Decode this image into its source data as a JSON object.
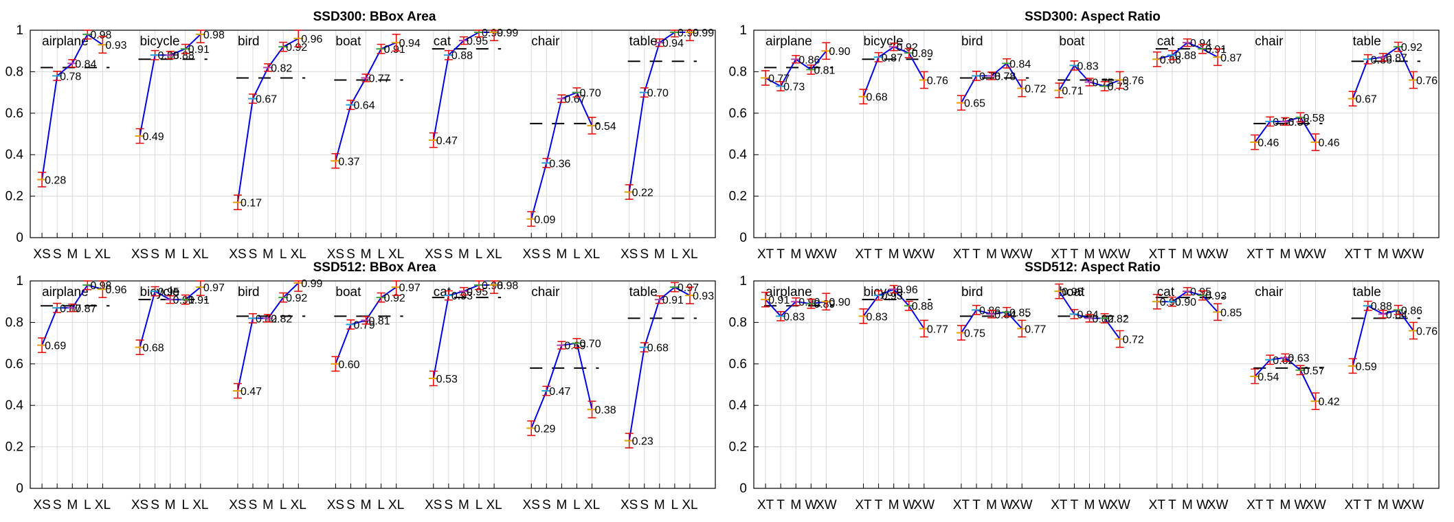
{
  "chart_data": [
    {
      "type": "line",
      "title": "SSD300: BBox Area",
      "xticks": [
        "XS",
        "S",
        "M",
        "L",
        "XL"
      ],
      "ylim": [
        0,
        1
      ],
      "yticks": [
        "0",
        "0.2",
        "0.4",
        "0.6",
        "0.8",
        "1"
      ],
      "grid": true,
      "groups": [
        {
          "name": "airplane",
          "values": [
            0.28,
            0.78,
            0.84,
            0.98,
            0.93
          ],
          "labels": [
            "0.28",
            "0.78",
            "0.84",
            "0.98",
            "0.93"
          ],
          "overall": 0.82
        },
        {
          "name": "bicycle",
          "values": [
            0.49,
            0.88,
            0.88,
            0.91,
            0.98
          ],
          "labels": [
            "0.49",
            "0.88",
            "0.88",
            "0.91",
            "0.98"
          ],
          "overall": 0.86
        },
        {
          "name": "bird",
          "values": [
            0.17,
            0.67,
            0.82,
            0.92,
            0.96
          ],
          "labels": [
            "0.17",
            "0.67",
            "0.82",
            "0.92",
            "0.96"
          ],
          "overall": 0.77
        },
        {
          "name": "boat",
          "values": [
            0.37,
            0.64,
            0.77,
            0.91,
            0.94
          ],
          "labels": [
            "0.37",
            "0.64",
            "0.77",
            "0.91",
            "0.94"
          ],
          "overall": 0.76
        },
        {
          "name": "cat",
          "values": [
            0.47,
            0.88,
            0.95,
            0.99,
            0.99
          ],
          "labels": [
            "0.47",
            "0.88",
            "0.95",
            "0.99",
            "0.99"
          ],
          "overall": 0.91
        },
        {
          "name": "chair",
          "values": [
            0.09,
            0.36,
            0.67,
            0.7,
            0.54
          ],
          "labels": [
            "0.09",
            "0.36",
            "0.67",
            "0.70",
            "0.54"
          ],
          "overall": 0.55
        },
        {
          "name": "table",
          "values": [
            0.22,
            0.7,
            0.94,
            0.99,
            0.99
          ],
          "labels": [
            "0.22",
            "0.70",
            "0.94",
            "0.99",
            "0.99"
          ],
          "overall": 0.85
        }
      ]
    },
    {
      "type": "line",
      "title": "SSD300: Aspect Ratio",
      "xticks": [
        "XT",
        "T",
        "M",
        "W",
        "XW"
      ],
      "ylim": [
        0,
        1
      ],
      "yticks": [
        "0",
        "0.2",
        "0.4",
        "0.6",
        "0.8",
        "1"
      ],
      "grid": true,
      "groups": [
        {
          "name": "airplane",
          "values": [
            0.77,
            0.73,
            0.86,
            0.81,
            0.9
          ],
          "labels": [
            "0.77",
            "0.73",
            "0.86",
            "0.81",
            "0.90"
          ],
          "overall": 0.82
        },
        {
          "name": "bicycle",
          "values": [
            0.68,
            0.87,
            0.92,
            0.89,
            0.76
          ],
          "labels": [
            "0.68",
            "0.87",
            "0.92",
            "0.89",
            "0.76"
          ],
          "overall": 0.86
        },
        {
          "name": "bird",
          "values": [
            0.65,
            0.78,
            0.78,
            0.84,
            0.72
          ],
          "labels": [
            "0.65",
            "0.78",
            "0.78",
            "0.84",
            "0.72"
          ],
          "overall": 0.77
        },
        {
          "name": "boat",
          "values": [
            0.71,
            0.83,
            0.75,
            0.73,
            0.76
          ],
          "labels": [
            "0.71",
            "0.83",
            "0.75",
            "0.73",
            "0.76"
          ],
          "overall": 0.76
        },
        {
          "name": "cat",
          "values": [
            0.86,
            0.88,
            0.94,
            0.91,
            0.87
          ],
          "labels": [
            "0.86",
            "0.88",
            "0.94",
            "0.91",
            "0.87"
          ],
          "overall": 0.91
        },
        {
          "name": "chair",
          "values": [
            0.46,
            0.56,
            0.56,
            0.58,
            0.46
          ],
          "labels": [
            "0.46",
            "0.56",
            "0.56",
            "0.58",
            "0.46"
          ],
          "overall": 0.55
        },
        {
          "name": "table",
          "values": [
            0.67,
            0.86,
            0.87,
            0.92,
            0.76
          ],
          "labels": [
            "0.67",
            "0.86",
            "0.87",
            "0.92",
            "0.76"
          ],
          "overall": 0.85
        }
      ]
    },
    {
      "type": "line",
      "title": "SSD512: BBox Area",
      "xticks": [
        "XS",
        "S",
        "M",
        "L",
        "XL"
      ],
      "ylim": [
        0,
        1
      ],
      "yticks": [
        "0",
        "0.2",
        "0.4",
        "0.6",
        "0.8",
        "1"
      ],
      "grid": true,
      "groups": [
        {
          "name": "airplane",
          "values": [
            0.69,
            0.87,
            0.87,
            0.98,
            0.96
          ],
          "labels": [
            "0.69",
            "0.87",
            "0.87",
            "0.98",
            "0.96"
          ],
          "overall": 0.88
        },
        {
          "name": "bicycle",
          "values": [
            0.68,
            0.95,
            0.91,
            0.91,
            0.97
          ],
          "labels": [
            "0.68",
            "0.95",
            "0.91",
            "0.91",
            "0.97"
          ],
          "overall": 0.91
        },
        {
          "name": "bird",
          "values": [
            0.47,
            0.82,
            0.82,
            0.92,
            0.99
          ],
          "labels": [
            "0.47",
            "0.82",
            "0.82",
            "0.92",
            "0.99"
          ],
          "overall": 0.83
        },
        {
          "name": "boat",
          "values": [
            0.6,
            0.79,
            0.81,
            0.92,
            0.97
          ],
          "labels": [
            "0.60",
            "0.79",
            "0.81",
            "0.92",
            "0.97"
          ],
          "overall": 0.83
        },
        {
          "name": "cat",
          "values": [
            0.53,
            0.93,
            0.95,
            0.98,
            0.98
          ],
          "labels": [
            "0.53",
            "0.93",
            "0.95",
            "0.98",
            "0.98"
          ],
          "overall": 0.92
        },
        {
          "name": "chair",
          "values": [
            0.29,
            0.47,
            0.69,
            0.7,
            0.38
          ],
          "labels": [
            "0.29",
            "0.47",
            "0.69",
            "0.70",
            "0.38"
          ],
          "overall": 0.58
        },
        {
          "name": "table",
          "values": [
            0.23,
            0.68,
            0.91,
            0.97,
            0.93
          ],
          "labels": [
            "0.23",
            "0.68",
            "0.91",
            "0.97",
            "0.93"
          ],
          "overall": 0.82
        }
      ]
    },
    {
      "type": "line",
      "title": "SSD512: Aspect Ratio",
      "xticks": [
        "XT",
        "T",
        "M",
        "W",
        "XW"
      ],
      "ylim": [
        0,
        1
      ],
      "yticks": [
        "0",
        "0.2",
        "0.4",
        "0.6",
        "0.8",
        "1"
      ],
      "grid": true,
      "groups": [
        {
          "name": "airplane",
          "values": [
            0.91,
            0.83,
            0.9,
            0.89,
            0.9
          ],
          "labels": [
            "0.91",
            "0.83",
            "0.90",
            "0.89",
            "0.90"
          ],
          "overall": 0.88
        },
        {
          "name": "bicycle",
          "values": [
            0.83,
            0.93,
            0.96,
            0.88,
            0.77
          ],
          "labels": [
            "0.83",
            "0.93",
            "0.96",
            "0.88",
            "0.77"
          ],
          "overall": 0.91
        },
        {
          "name": "bird",
          "values": [
            0.75,
            0.86,
            0.84,
            0.85,
            0.77
          ],
          "labels": [
            "0.75",
            "0.86",
            "0.84",
            "0.85",
            "0.77"
          ],
          "overall": 0.83
        },
        {
          "name": "boat",
          "values": [
            0.95,
            0.84,
            0.82,
            0.82,
            0.72
          ],
          "labels": [
            "0.95",
            "0.84",
            "0.82",
            "0.82",
            "0.72"
          ],
          "overall": 0.83
        },
        {
          "name": "cat",
          "values": [
            0.9,
            0.9,
            0.95,
            0.93,
            0.85
          ],
          "labels": [
            "0.90",
            "0.90",
            "0.95",
            "0.93",
            "0.85"
          ],
          "overall": 0.92
        },
        {
          "name": "chair",
          "values": [
            0.54,
            0.62,
            0.63,
            0.57,
            0.42
          ],
          "labels": [
            "0.54",
            "0.62",
            "0.63",
            "0.57",
            "0.42"
          ],
          "overall": 0.58
        },
        {
          "name": "table",
          "values": [
            0.59,
            0.88,
            0.84,
            0.86,
            0.76
          ],
          "labels": [
            "0.59",
            "0.88",
            "0.84",
            "0.86",
            "0.76"
          ],
          "overall": 0.82
        }
      ]
    }
  ],
  "colors": {
    "line": "#0000e6",
    "errorbar": "#e60000",
    "overall": "#000000",
    "grid": "#d9d9d9",
    "marker_palette": [
      "#e6a000",
      "#1f9fe0",
      "#b03fb0",
      "#3fa03f",
      "#e6a000"
    ]
  }
}
